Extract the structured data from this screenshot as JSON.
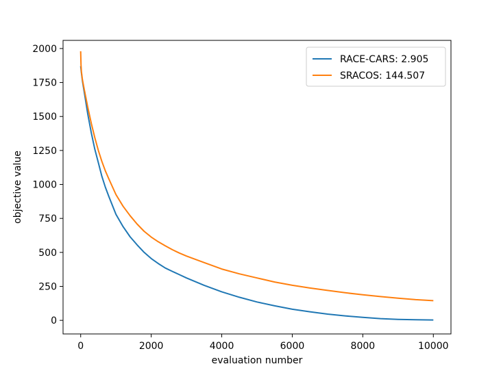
{
  "chart_data": {
    "type": "line",
    "title": "",
    "xlabel": "evaluation number",
    "ylabel": "objective value",
    "xlim": [
      -500,
      10500
    ],
    "ylim": [
      -100,
      2060
    ],
    "x_ticks": [
      0,
      2000,
      4000,
      6000,
      8000,
      10000
    ],
    "x_tick_labels": [
      "0",
      "2000",
      "4000",
      "6000",
      "8000",
      "10000"
    ],
    "y_ticks": [
      0,
      250,
      500,
      750,
      1000,
      1250,
      1500,
      1750,
      2000
    ],
    "y_tick_labels": [
      "0",
      "250",
      "500",
      "750",
      "1000",
      "1250",
      "1500",
      "1750",
      "2000"
    ],
    "grid": false,
    "legend_position": "top-right",
    "series": [
      {
        "name": "RACE-CARS: 2.905",
        "color": "#1f77b4",
        "x": [
          0,
          20,
          50,
          100,
          200,
          300,
          400,
          500,
          600,
          700,
          800,
          1000,
          1200,
          1400,
          1600,
          1800,
          2000,
          2200,
          2400,
          2600,
          2800,
          3000,
          3500,
          4000,
          4500,
          5000,
          5500,
          6000,
          6500,
          7000,
          7500,
          8000,
          8500,
          9000,
          9500,
          10000
        ],
        "y": [
          1870,
          1820,
          1760,
          1680,
          1520,
          1380,
          1260,
          1160,
          1060,
          980,
          910,
          780,
          690,
          615,
          555,
          500,
          455,
          418,
          385,
          360,
          336,
          312,
          258,
          210,
          170,
          135,
          107,
          82,
          63,
          46,
          33,
          22,
          13,
          7,
          4,
          2.905
        ]
      },
      {
        "name": "SRACOS: 144.507",
        "color": "#ff7f0e",
        "x": [
          0,
          10,
          20,
          50,
          100,
          200,
          300,
          400,
          500,
          600,
          700,
          800,
          1000,
          1200,
          1400,
          1600,
          1800,
          2000,
          2200,
          2400,
          2600,
          2800,
          3000,
          3500,
          4000,
          4500,
          5000,
          5500,
          6000,
          6500,
          7000,
          7500,
          8000,
          8500,
          9000,
          9500,
          10000
        ],
        "y": [
          1980,
          1880,
          1830,
          1770,
          1700,
          1570,
          1450,
          1345,
          1250,
          1170,
          1100,
          1040,
          925,
          840,
          770,
          708,
          655,
          613,
          578,
          548,
          520,
          495,
          473,
          425,
          378,
          342,
          312,
          282,
          258,
          238,
          220,
          203,
          188,
          175,
          163,
          152,
          144.507
        ]
      }
    ]
  }
}
